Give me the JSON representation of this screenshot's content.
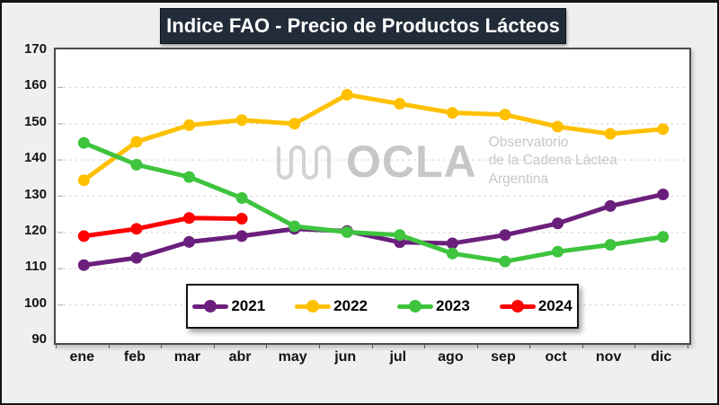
{
  "title": "Indice FAO - Precio de Productos Lácteos",
  "watermark": {
    "brand": "OCLA",
    "lines": [
      "Observatorio",
      "de la Cadena Láctea",
      "Argentina"
    ]
  },
  "chart_data": {
    "type": "line",
    "title": "Indice FAO - Precio de Productos Lácteos",
    "categories": [
      "ene",
      "feb",
      "mar",
      "abr",
      "may",
      "jun",
      "jul",
      "ago",
      "sep",
      "oct",
      "nov",
      "dic"
    ],
    "yticks": [
      170,
      160,
      150,
      140,
      130,
      120,
      110,
      100,
      90
    ],
    "ylim": [
      90,
      170
    ],
    "grid": "horizontal-dashed",
    "legend_position": "bottom-center-overlay",
    "series": [
      {
        "name": "2021",
        "color": "#6B1F7C",
        "values": [
          111,
          113,
          117.4,
          119,
          121,
          120.4,
          117.3,
          117,
          119.3,
          122.5,
          127.3,
          130.5
        ]
      },
      {
        "name": "2022",
        "color": "#FFC000",
        "values": [
          134.4,
          145,
          149.6,
          151,
          150,
          158,
          155.5,
          153,
          152.5,
          149.2,
          147.2,
          148.5
        ]
      },
      {
        "name": "2023",
        "color": "#3EC43E",
        "values": [
          144.7,
          138.7,
          135.3,
          129.5,
          121.7,
          120.1,
          119.3,
          114.2,
          112,
          114.7,
          116.6,
          118.8
        ]
      },
      {
        "name": "2024",
        "color": "#FF0000",
        "values": [
          119,
          121,
          124,
          123.8
        ]
      }
    ]
  }
}
